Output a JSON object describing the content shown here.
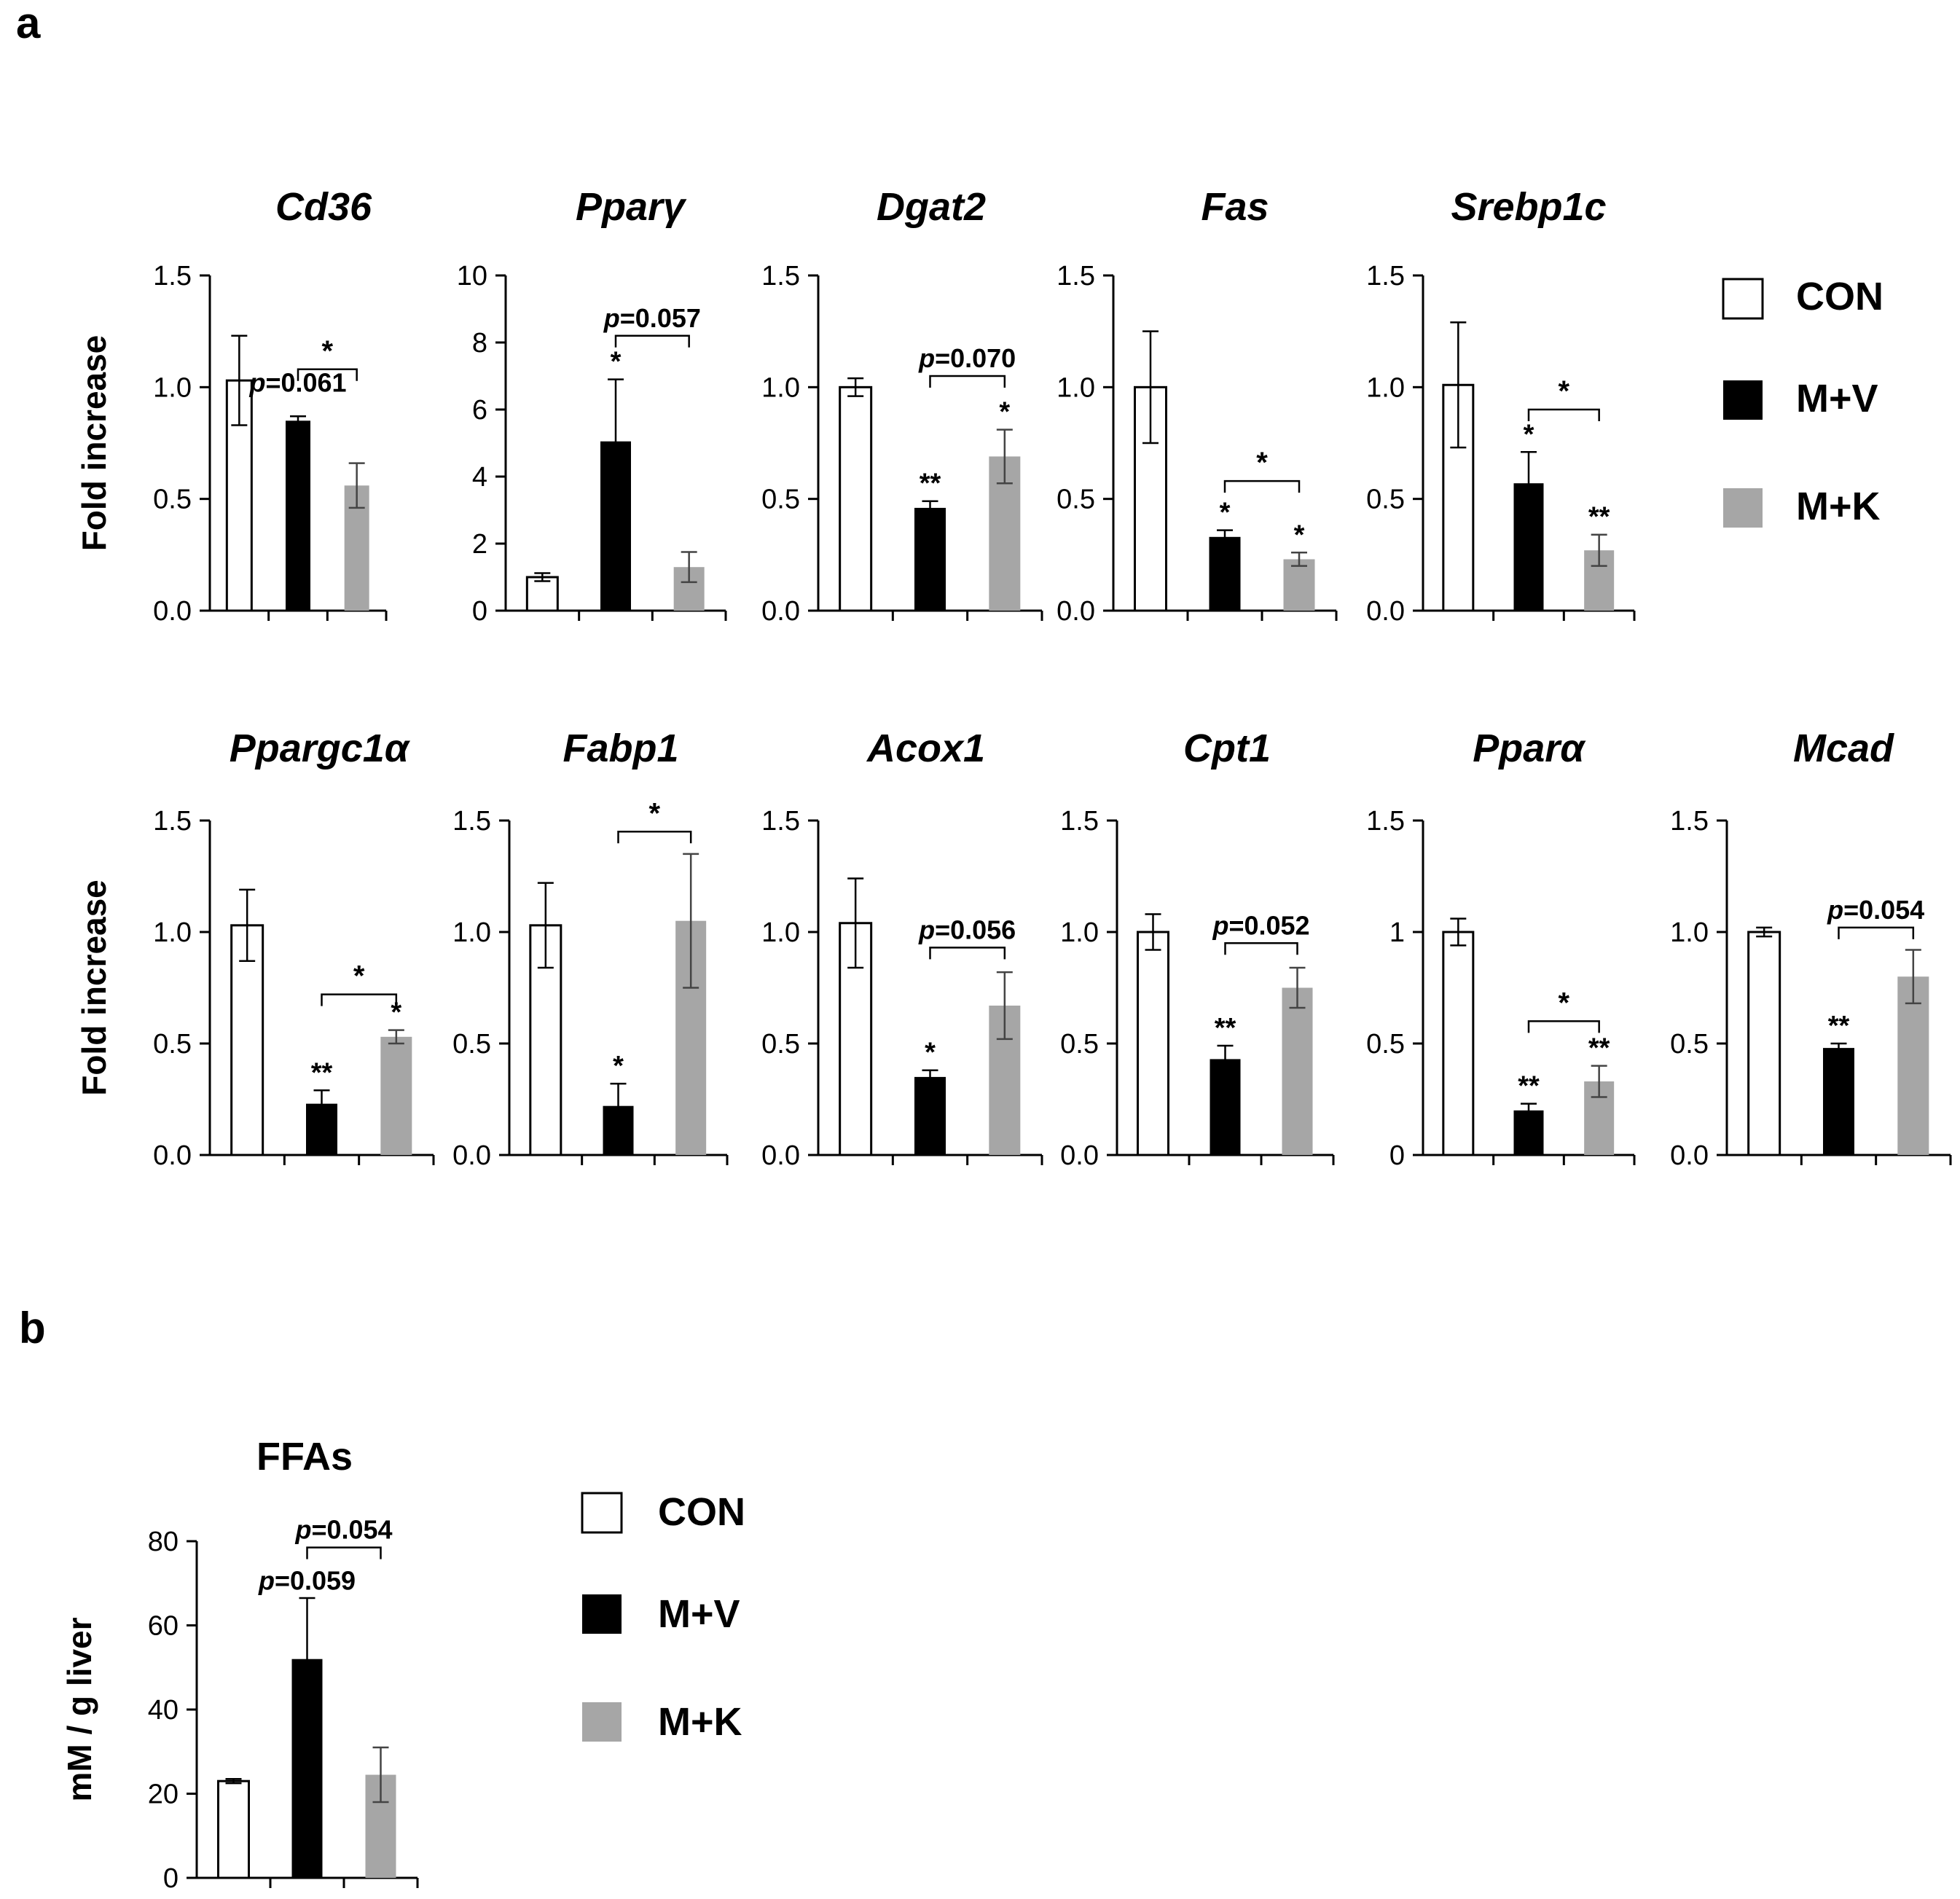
{
  "panel_labels": {
    "a": "a",
    "b": "b"
  },
  "legend": {
    "items": [
      {
        "label": "CON",
        "color": "#ffffff"
      },
      {
        "label": "M+V",
        "color": "#000000"
      },
      {
        "label": "M+K",
        "color": "#a6a6a6"
      }
    ]
  },
  "colors": {
    "con": "#ffffff",
    "mv": "#000000",
    "mk": "#a6a6a6",
    "axis": "#000000"
  },
  "chart_data": [
    {
      "type": "bar",
      "title": "Cd36",
      "ylabel": "Fold increase",
      "ylim": [
        0,
        1.5
      ],
      "yticks": [
        "0.0",
        "0.5",
        "1.0",
        "1.5"
      ],
      "categories": [
        "CON",
        "M+V",
        "M+K"
      ],
      "values": [
        1.03,
        0.85,
        0.56
      ],
      "errors": [
        0.2,
        0.02,
        0.1
      ],
      "marks": [
        "",
        "",
        ""
      ],
      "annotations": [
        {
          "text": "p=0.061",
          "italic_p": true,
          "at": 1,
          "value": 0.98
        },
        {
          "text": "*",
          "bracket": [
            1,
            2
          ],
          "value": 1.08
        }
      ]
    },
    {
      "type": "bar",
      "title": "Pparγ",
      "ylabel": "",
      "ylim": [
        0,
        10
      ],
      "yticks": [
        "0",
        "2",
        "4",
        "6",
        "8",
        "10"
      ],
      "categories": [
        "CON",
        "M+V",
        "M+K"
      ],
      "values": [
        1.0,
        5.05,
        1.3
      ],
      "errors": [
        0.12,
        1.85,
        0.45
      ],
      "marks": [
        "",
        "*",
        ""
      ],
      "annotations": [
        {
          "text": "p=0.057",
          "italic_p": true,
          "bracket": [
            1,
            2
          ],
          "value": 8.2
        }
      ]
    },
    {
      "type": "bar",
      "title": "Dgat2",
      "ylabel": "",
      "ylim": [
        0,
        1.5
      ],
      "yticks": [
        "0.0",
        "0.5",
        "1.0",
        "1.5"
      ],
      "categories": [
        "CON",
        "M+V",
        "M+K"
      ],
      "values": [
        1.0,
        0.46,
        0.69
      ],
      "errors": [
        0.04,
        0.03,
        0.12
      ],
      "marks": [
        "",
        "**",
        "*"
      ],
      "annotations": [
        {
          "text": "p=0.070",
          "italic_p": true,
          "bracket": [
            1,
            2
          ],
          "value": 1.05
        }
      ]
    },
    {
      "type": "bar",
      "title": "Fas",
      "ylabel": "",
      "ylim": [
        0,
        1.5
      ],
      "yticks": [
        "0.0",
        "0.5",
        "1.0",
        "1.5"
      ],
      "categories": [
        "CON",
        "M+V",
        "M+K"
      ],
      "values": [
        1.0,
        0.33,
        0.23
      ],
      "errors": [
        0.25,
        0.03,
        0.03
      ],
      "marks": [
        "",
        "*",
        "*"
      ],
      "annotations": [
        {
          "text": "*",
          "bracket": [
            1,
            2
          ],
          "value": 0.58
        }
      ]
    },
    {
      "type": "bar",
      "title": "Srebp1c",
      "ylabel": "",
      "ylim": [
        0,
        1.5
      ],
      "yticks": [
        "0.0",
        "0.5",
        "1.0",
        "1.5"
      ],
      "categories": [
        "CON",
        "M+V",
        "M+K"
      ],
      "values": [
        1.01,
        0.57,
        0.27
      ],
      "errors": [
        0.28,
        0.14,
        0.07
      ],
      "marks": [
        "",
        "*",
        "**"
      ],
      "annotations": [
        {
          "text": "*",
          "bracket": [
            1,
            2
          ],
          "value": 0.9
        }
      ]
    },
    {
      "type": "bar",
      "title": "Ppargc1α",
      "ylabel": "Fold increase",
      "ylim": [
        0,
        1.5
      ],
      "yticks": [
        "0.0",
        "0.5",
        "1.0",
        "1.5"
      ],
      "categories": [
        "CON",
        "M+V",
        "M+K"
      ],
      "values": [
        1.03,
        0.23,
        0.53
      ],
      "errors": [
        0.16,
        0.06,
        0.03
      ],
      "marks": [
        "",
        "**",
        "*"
      ],
      "annotations": [
        {
          "text": "*",
          "bracket": [
            1,
            2
          ],
          "value": 0.72
        }
      ]
    },
    {
      "type": "bar",
      "title": "Fabp1",
      "ylabel": "",
      "ylim": [
        0,
        1.5
      ],
      "yticks": [
        "0.0",
        "0.5",
        "1.0",
        "1.5"
      ],
      "categories": [
        "CON",
        "M+V",
        "M+K"
      ],
      "values": [
        1.03,
        0.22,
        1.05
      ],
      "errors": [
        0.19,
        0.1,
        0.3
      ],
      "marks": [
        "",
        "*",
        ""
      ],
      "annotations": [
        {
          "text": "*",
          "bracket": [
            1,
            2
          ],
          "value": 1.45
        }
      ]
    },
    {
      "type": "bar",
      "title": "Acox1",
      "ylabel": "",
      "ylim": [
        0,
        1.5
      ],
      "yticks": [
        "0.0",
        "0.5",
        "1.0",
        "1.5"
      ],
      "categories": [
        "CON",
        "M+V",
        "M+K"
      ],
      "values": [
        1.04,
        0.35,
        0.67
      ],
      "errors": [
        0.2,
        0.03,
        0.15
      ],
      "marks": [
        "",
        "*",
        ""
      ],
      "annotations": [
        {
          "text": "p=0.056",
          "italic_p": true,
          "bracket": [
            1,
            2
          ],
          "value": 0.93
        }
      ]
    },
    {
      "type": "bar",
      "title": "Cpt1",
      "ylabel": "",
      "ylim": [
        0,
        1.5
      ],
      "yticks": [
        "0.0",
        "0.5",
        "1.0",
        "1.5"
      ],
      "categories": [
        "CON",
        "M+V",
        "M+K"
      ],
      "values": [
        1.0,
        0.43,
        0.75
      ],
      "errors": [
        0.08,
        0.06,
        0.09
      ],
      "marks": [
        "",
        "**",
        ""
      ],
      "annotations": [
        {
          "text": "p=0.052",
          "italic_p": true,
          "bracket": [
            1,
            2
          ],
          "value": 0.95
        }
      ]
    },
    {
      "type": "bar",
      "title": "Pparα",
      "ylabel": "",
      "ylim": [
        0,
        1.5
      ],
      "yticks": [
        "0",
        "0.5",
        "1",
        "1.5"
      ],
      "categories": [
        "CON",
        "M+V",
        "M+K"
      ],
      "values": [
        1.0,
        0.2,
        0.33
      ],
      "errors": [
        0.06,
        0.03,
        0.07
      ],
      "marks": [
        "",
        "**",
        "**"
      ],
      "annotations": [
        {
          "text": "*",
          "bracket": [
            1,
            2
          ],
          "value": 0.6
        }
      ]
    },
    {
      "type": "bar",
      "title": "Mcad",
      "ylabel": "",
      "ylim": [
        0,
        1.5
      ],
      "yticks": [
        "0.0",
        "0.5",
        "1.0",
        "1.5"
      ],
      "categories": [
        "CON",
        "M+V",
        "M+K"
      ],
      "values": [
        1.0,
        0.48,
        0.8
      ],
      "errors": [
        0.02,
        0.02,
        0.12
      ],
      "marks": [
        "",
        "**",
        ""
      ],
      "annotations": [
        {
          "text": "p=0.054",
          "italic_p": true,
          "bracket": [
            1,
            2
          ],
          "value": 1.02
        }
      ]
    },
    {
      "type": "bar",
      "title": "FFAs",
      "ylabel": "mM / g liver",
      "ylim": [
        0,
        80
      ],
      "yticks": [
        "0",
        "20",
        "40",
        "60",
        "80"
      ],
      "categories": [
        "CON",
        "M+V",
        "M+K"
      ],
      "values": [
        23,
        52,
        24.5
      ],
      "errors": [
        0.5,
        14.5,
        6.5
      ],
      "marks": [
        "",
        "",
        ""
      ],
      "annotations": [
        {
          "text": "p=0.059",
          "italic_p": true,
          "at": 1,
          "value": 68.5
        },
        {
          "text": "p=0.054",
          "italic_p": true,
          "bracket": [
            1,
            2
          ],
          "value": 78.5
        }
      ]
    }
  ]
}
